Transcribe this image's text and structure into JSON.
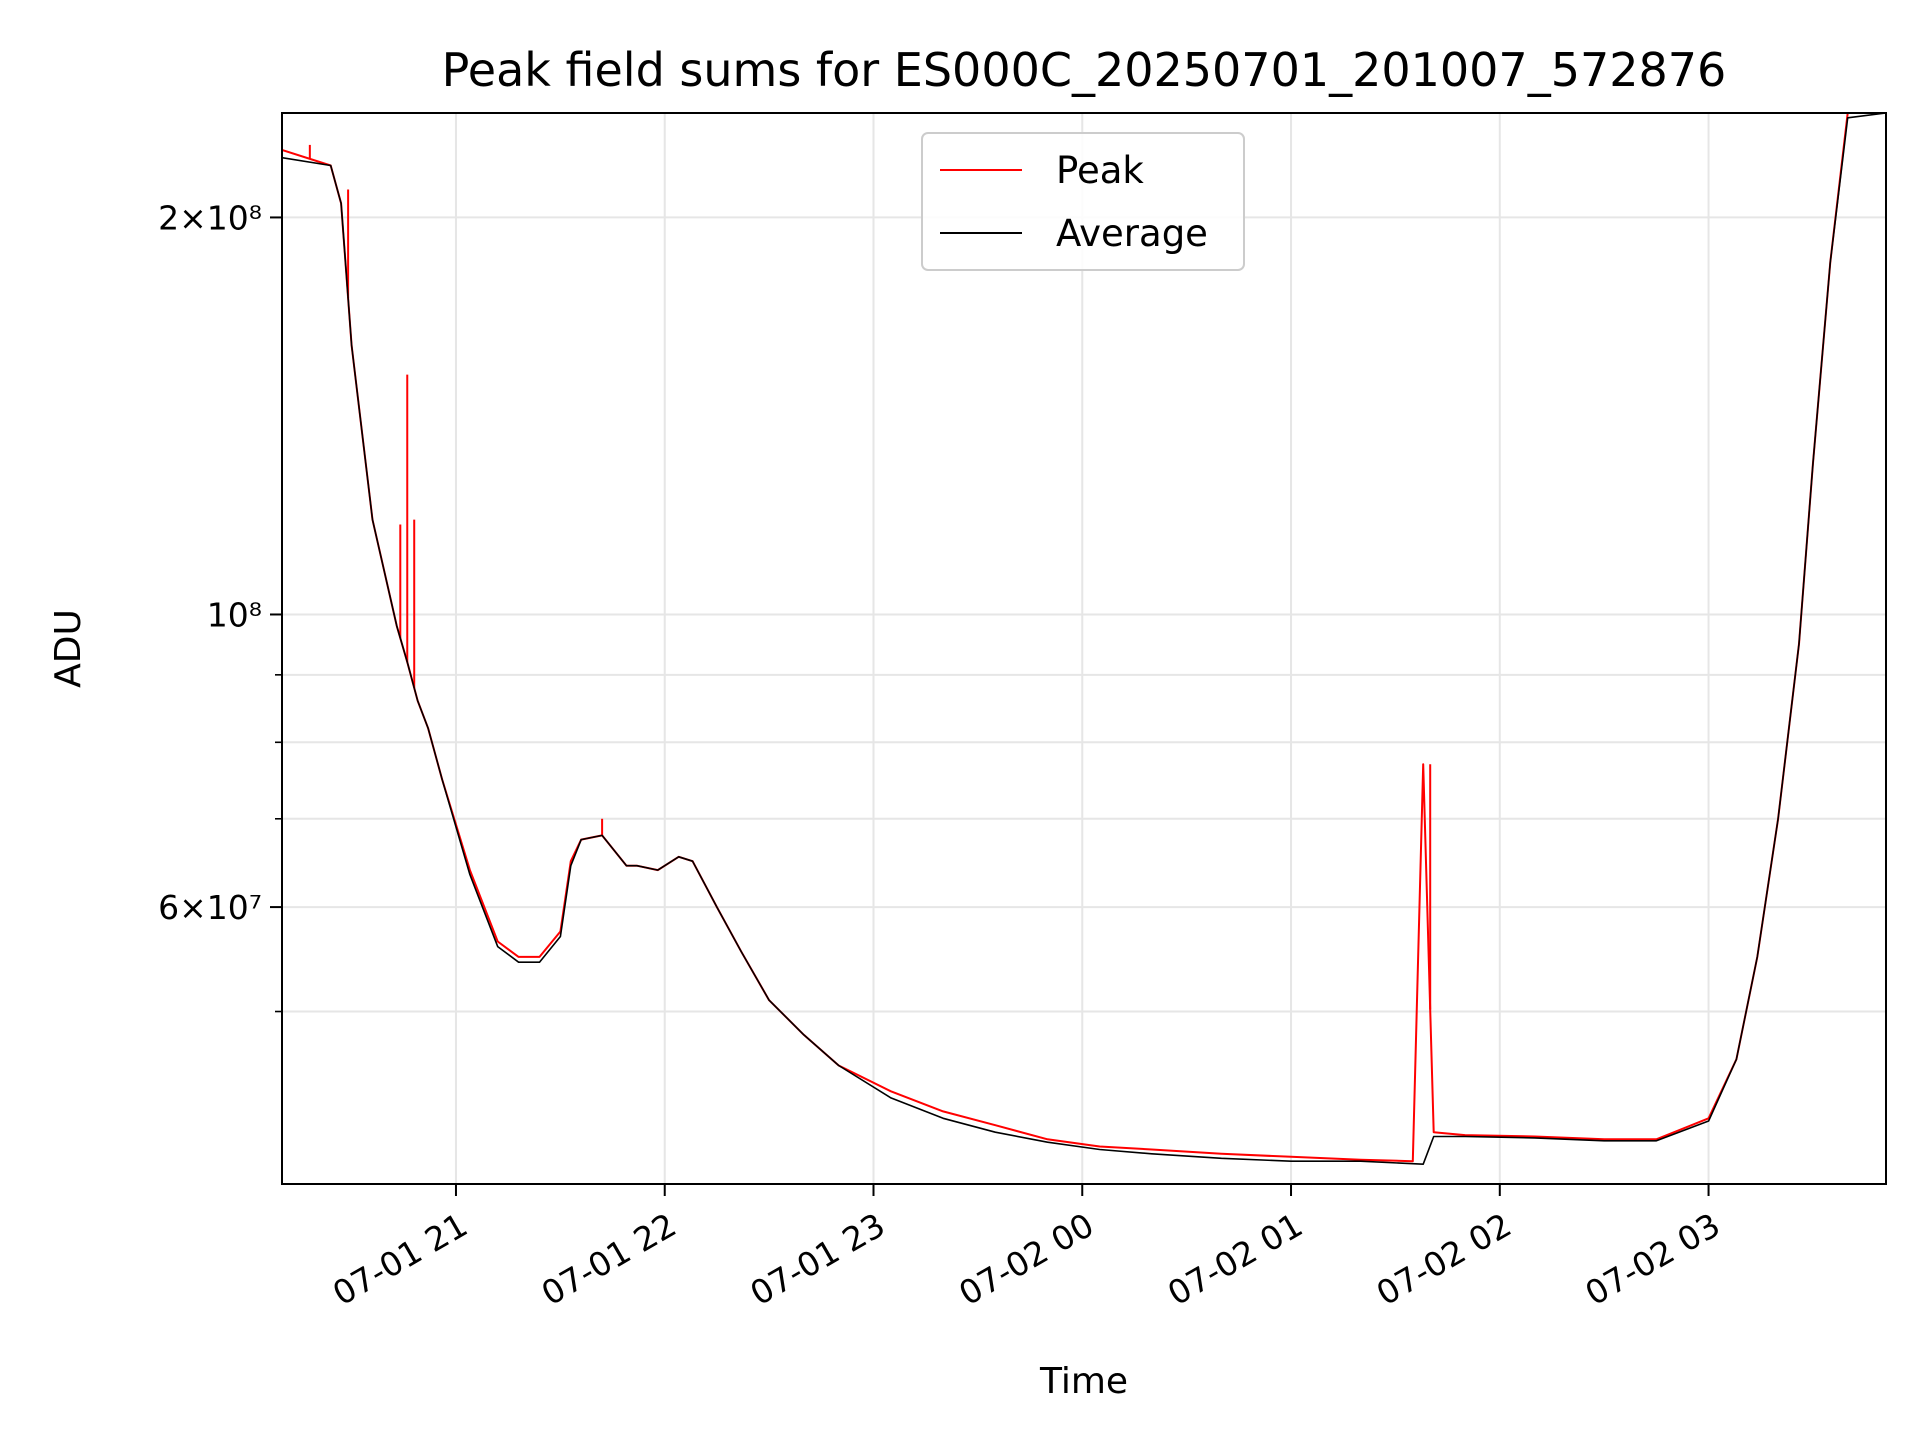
{
  "chart_data": {
    "type": "line",
    "title": "Peak field sums for ES000C_20250701_201007_572876",
    "xlabel": "Time",
    "ylabel": "ADU",
    "yscale": "log",
    "xlim": [
      "2025-07-01 20:10",
      "2025-07-02 03:51"
    ],
    "ylim": [
      37000000,
      240000000
    ],
    "grid": true,
    "legend_position": "upper center",
    "x_ticks": [
      {
        "value": "2025-07-01 21:00",
        "label": "07-01 21"
      },
      {
        "value": "2025-07-01 22:00",
        "label": "07-01 22"
      },
      {
        "value": "2025-07-01 23:00",
        "label": "07-01 23"
      },
      {
        "value": "2025-07-02 00:00",
        "label": "07-02 00"
      },
      {
        "value": "2025-07-02 01:00",
        "label": "07-02 01"
      },
      {
        "value": "2025-07-02 02:00",
        "label": "07-02 02"
      },
      {
        "value": "2025-07-02 03:00",
        "label": "07-02 03"
      }
    ],
    "y_ticks": [
      {
        "value": 200000000,
        "label": "2×10⁸"
      },
      {
        "value": 100000000,
        "label": "10⁸"
      },
      {
        "value": 60000000,
        "label": "6×10⁷"
      }
    ],
    "y_minor_ticks": [
      50000000,
      70000000,
      80000000,
      90000000
    ],
    "series": [
      {
        "name": "Peak",
        "color": "#ff0000",
        "x": [
          "2025-07-01 20:10",
          "2025-07-01 20:24",
          "2025-07-01 20:27",
          "2025-07-01 20:30",
          "2025-07-01 20:36",
          "2025-07-01 20:43",
          "2025-07-01 20:46",
          "2025-07-01 20:49",
          "2025-07-01 20:52",
          "2025-07-01 20:56",
          "2025-07-01 21:04",
          "2025-07-01 21:12",
          "2025-07-01 21:18",
          "2025-07-01 21:24",
          "2025-07-01 21:30",
          "2025-07-01 21:33",
          "2025-07-01 21:36",
          "2025-07-01 21:42",
          "2025-07-01 21:49",
          "2025-07-01 21:52",
          "2025-07-01 21:58",
          "2025-07-01 22:04",
          "2025-07-01 22:08",
          "2025-07-01 22:15",
          "2025-07-01 22:22",
          "2025-07-01 22:30",
          "2025-07-01 22:40",
          "2025-07-01 22:50",
          "2025-07-01 23:05",
          "2025-07-01 23:20",
          "2025-07-01 23:35",
          "2025-07-01 23:50",
          "2025-07-02 00:05",
          "2025-07-02 00:20",
          "2025-07-02 00:40",
          "2025-07-02 01:00",
          "2025-07-02 01:20",
          "2025-07-02 01:35",
          "2025-07-02 01:38",
          "2025-07-02 01:41",
          "2025-07-02 01:50",
          "2025-07-02 02:10",
          "2025-07-02 02:30",
          "2025-07-02 02:45",
          "2025-07-02 03:00",
          "2025-07-02 03:08",
          "2025-07-02 03:14",
          "2025-07-02 03:20",
          "2025-07-02 03:26",
          "2025-07-02 03:30",
          "2025-07-02 03:35",
          "2025-07-02 03:40",
          "2025-07-02 03:51"
        ],
        "values": [
          225000000,
          219000000,
          205000000,
          160000000,
          118000000,
          98000000,
          92000000,
          86000000,
          82000000,
          75000000,
          64000000,
          56500000,
          55000000,
          55000000,
          57500000,
          65000000,
          67500000,
          68000000,
          64500000,
          64500000,
          64000000,
          65500000,
          65000000,
          60000000,
          55500000,
          51000000,
          48000000,
          45500000,
          43500000,
          42000000,
          41000000,
          40000000,
          39500000,
          39300000,
          39000000,
          38800000,
          38600000,
          38500000,
          77000000,
          40500000,
          40300000,
          40200000,
          40000000,
          40000000,
          41500000,
          46000000,
          55000000,
          70000000,
          95000000,
          130000000,
          185000000,
          240000000,
          240000000
        ],
        "spikes": [
          {
            "x": "2025-07-01 20:18",
            "value": 227000000
          },
          {
            "x": "2025-07-01 20:29",
            "value": 210000000
          },
          {
            "x": "2025-07-01 20:46",
            "value": 152000000
          },
          {
            "x": "2025-07-01 20:44",
            "value": 117000000
          },
          {
            "x": "2025-07-01 20:48",
            "value": 118000000
          },
          {
            "x": "2025-07-01 21:42",
            "value": 70000000
          },
          {
            "x": "2025-07-02 01:40",
            "value": 77000000
          }
        ]
      },
      {
        "name": "Average",
        "color": "#000000",
        "x": [
          "2025-07-01 20:10",
          "2025-07-01 20:24",
          "2025-07-01 20:27",
          "2025-07-01 20:30",
          "2025-07-01 20:36",
          "2025-07-01 20:43",
          "2025-07-01 20:46",
          "2025-07-01 20:49",
          "2025-07-01 20:52",
          "2025-07-01 20:56",
          "2025-07-01 21:04",
          "2025-07-01 21:12",
          "2025-07-01 21:18",
          "2025-07-01 21:24",
          "2025-07-01 21:30",
          "2025-07-01 21:33",
          "2025-07-01 21:36",
          "2025-07-01 21:42",
          "2025-07-01 21:49",
          "2025-07-01 21:52",
          "2025-07-01 21:58",
          "2025-07-01 22:04",
          "2025-07-01 22:08",
          "2025-07-01 22:15",
          "2025-07-01 22:22",
          "2025-07-01 22:30",
          "2025-07-01 22:40",
          "2025-07-01 22:50",
          "2025-07-01 23:05",
          "2025-07-01 23:20",
          "2025-07-01 23:35",
          "2025-07-01 23:50",
          "2025-07-02 00:05",
          "2025-07-02 00:20",
          "2025-07-02 00:40",
          "2025-07-02 01:00",
          "2025-07-02 01:20",
          "2025-07-02 01:38",
          "2025-07-02 01:41",
          "2025-07-02 01:50",
          "2025-07-02 02:10",
          "2025-07-02 02:30",
          "2025-07-02 02:45",
          "2025-07-02 03:00",
          "2025-07-02 03:08",
          "2025-07-02 03:14",
          "2025-07-02 03:20",
          "2025-07-02 03:26",
          "2025-07-02 03:30",
          "2025-07-02 03:35",
          "2025-07-02 03:40",
          "2025-07-02 03:51"
        ],
        "values": [
          222000000,
          219000000,
          205000000,
          160000000,
          118000000,
          98000000,
          92000000,
          86000000,
          82000000,
          75000000,
          63500000,
          56000000,
          54500000,
          54500000,
          57000000,
          64500000,
          67500000,
          68000000,
          64500000,
          64500000,
          64000000,
          65500000,
          65000000,
          60000000,
          55500000,
          51000000,
          48000000,
          45500000,
          43000000,
          41500000,
          40500000,
          39800000,
          39300000,
          39000000,
          38700000,
          38500000,
          38500000,
          38300000,
          40200000,
          40200000,
          40100000,
          39900000,
          39900000,
          41300000,
          46000000,
          55000000,
          70000000,
          95000000,
          130000000,
          185000000,
          238000000,
          240000000
        ]
      }
    ]
  }
}
